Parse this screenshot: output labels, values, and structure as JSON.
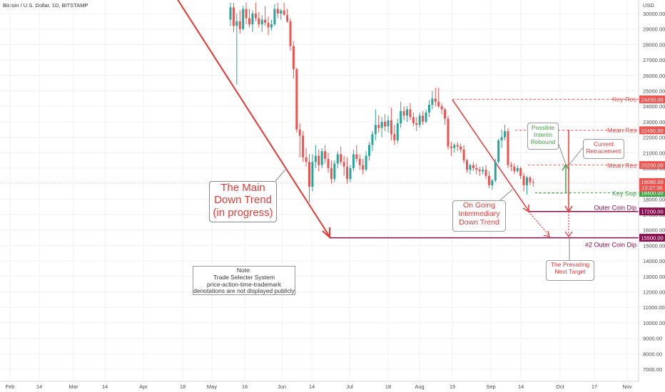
{
  "header": {
    "title": "Bitcoin / U.S. Dollar, 1D, BITSTAMP",
    "currency": "USD"
  },
  "colors": {
    "up": "#26a69a",
    "down": "#ef5350",
    "trend_line": "#e53935",
    "dip_line": "#880e4f",
    "green_arrow": "#43a047",
    "grid": "#f0f0f0"
  },
  "chart_data": {
    "type": "candlestick",
    "y_axis": {
      "min": 6500,
      "max": 30800,
      "ticks": [
        7000,
        8000,
        9000,
        10000,
        11000,
        12000,
        13000,
        14000,
        15000,
        16000,
        17000,
        18000,
        19000,
        20000,
        21000,
        22000,
        23000,
        24000,
        25000,
        26000,
        27000,
        28000,
        29000,
        30000
      ]
    },
    "x_axis": {
      "ticks": [
        "Feb",
        "14",
        "Mar",
        "14",
        "Apr",
        "18",
        "May",
        "16",
        "Jun",
        "14",
        "Jul",
        "18",
        "Aug",
        "15",
        "Sep",
        "14",
        "Oct",
        "17",
        "Nov"
      ]
    },
    "candles": [
      {
        "o": 29600,
        "h": 30700,
        "l": 29200,
        "c": 30400
      },
      {
        "o": 30400,
        "h": 30700,
        "l": 28800,
        "c": 29200
      },
      {
        "o": 29200,
        "h": 30000,
        "l": 25400,
        "c": 29500
      },
      {
        "o": 29500,
        "h": 30200,
        "l": 28700,
        "c": 29000
      },
      {
        "o": 29000,
        "h": 30500,
        "l": 28900,
        "c": 30300
      },
      {
        "o": 30300,
        "h": 30700,
        "l": 29300,
        "c": 29700
      },
      {
        "o": 29700,
        "h": 30300,
        "l": 29100,
        "c": 29300
      },
      {
        "o": 29300,
        "h": 30200,
        "l": 28800,
        "c": 30000
      },
      {
        "o": 30000,
        "h": 30700,
        "l": 29500,
        "c": 29700
      },
      {
        "o": 29700,
        "h": 30100,
        "l": 29100,
        "c": 29300
      },
      {
        "o": 29300,
        "h": 29900,
        "l": 28800,
        "c": 29600
      },
      {
        "o": 29600,
        "h": 30500,
        "l": 29200,
        "c": 29400
      },
      {
        "o": 29400,
        "h": 29800,
        "l": 28600,
        "c": 29100
      },
      {
        "o": 29100,
        "h": 29600,
        "l": 28900,
        "c": 29300
      },
      {
        "o": 29300,
        "h": 30600,
        "l": 29200,
        "c": 30300
      },
      {
        "o": 30300,
        "h": 30700,
        "l": 29700,
        "c": 30000
      },
      {
        "o": 30000,
        "h": 30300,
        "l": 29600,
        "c": 30200
      },
      {
        "o": 30200,
        "h": 30700,
        "l": 29900,
        "c": 29900
      },
      {
        "o": 29900,
        "h": 30300,
        "l": 29400,
        "c": 29500
      },
      {
        "o": 29500,
        "h": 29700,
        "l": 27600,
        "c": 27900
      },
      {
        "o": 27900,
        "h": 28200,
        "l": 25800,
        "c": 26400
      },
      {
        "o": 26400,
        "h": 26500,
        "l": 22300,
        "c": 22500
      },
      {
        "o": 22500,
        "h": 22900,
        "l": 20700,
        "c": 22100
      },
      {
        "o": 22100,
        "h": 22400,
        "l": 20400,
        "c": 20700
      },
      {
        "o": 20700,
        "h": 21300,
        "l": 20100,
        "c": 20400
      },
      {
        "o": 20400,
        "h": 20900,
        "l": 17800,
        "c": 18800
      },
      {
        "o": 18800,
        "h": 20900,
        "l": 18500,
        "c": 20400
      },
      {
        "o": 20400,
        "h": 21500,
        "l": 20000,
        "c": 20800
      },
      {
        "o": 20800,
        "h": 21200,
        "l": 19800,
        "c": 20200
      },
      {
        "o": 20200,
        "h": 21300,
        "l": 20000,
        "c": 21100
      },
      {
        "o": 21100,
        "h": 21500,
        "l": 20300,
        "c": 20600
      },
      {
        "o": 20600,
        "h": 21000,
        "l": 19700,
        "c": 20000
      },
      {
        "o": 20000,
        "h": 20500,
        "l": 19000,
        "c": 19300
      },
      {
        "o": 19300,
        "h": 20500,
        "l": 19100,
        "c": 20300
      },
      {
        "o": 20300,
        "h": 21100,
        "l": 20000,
        "c": 20900
      },
      {
        "o": 20900,
        "h": 21400,
        "l": 20200,
        "c": 20400
      },
      {
        "o": 20400,
        "h": 20800,
        "l": 19500,
        "c": 20100
      },
      {
        "o": 20100,
        "h": 20700,
        "l": 19000,
        "c": 19300
      },
      {
        "o": 19300,
        "h": 20200,
        "l": 19100,
        "c": 20000
      },
      {
        "o": 20000,
        "h": 21200,
        "l": 19800,
        "c": 20900
      },
      {
        "o": 20900,
        "h": 21500,
        "l": 20400,
        "c": 20600
      },
      {
        "o": 20600,
        "h": 20900,
        "l": 19900,
        "c": 20200
      },
      {
        "o": 20200,
        "h": 20600,
        "l": 19600,
        "c": 19900
      },
      {
        "o": 19900,
        "h": 21100,
        "l": 19800,
        "c": 20800
      },
      {
        "o": 20800,
        "h": 21700,
        "l": 20500,
        "c": 21500
      },
      {
        "o": 21500,
        "h": 22400,
        "l": 21100,
        "c": 22200
      },
      {
        "o": 22200,
        "h": 23800,
        "l": 21800,
        "c": 22800
      },
      {
        "o": 22800,
        "h": 23400,
        "l": 22300,
        "c": 22600
      },
      {
        "o": 22600,
        "h": 23300,
        "l": 22000,
        "c": 23000
      },
      {
        "o": 23000,
        "h": 23500,
        "l": 22400,
        "c": 22700
      },
      {
        "o": 22700,
        "h": 23400,
        "l": 22300,
        "c": 23100
      },
      {
        "o": 23100,
        "h": 23900,
        "l": 21800,
        "c": 22200
      },
      {
        "o": 22200,
        "h": 22800,
        "l": 21500,
        "c": 21800
      },
      {
        "o": 21800,
        "h": 23200,
        "l": 21600,
        "c": 22900
      },
      {
        "o": 22900,
        "h": 24300,
        "l": 22600,
        "c": 23700
      },
      {
        "o": 23700,
        "h": 24000,
        "l": 23100,
        "c": 23400
      },
      {
        "o": 23400,
        "h": 24000,
        "l": 23000,
        "c": 23800
      },
      {
        "o": 23800,
        "h": 24200,
        "l": 23100,
        "c": 23300
      },
      {
        "o": 23300,
        "h": 23600,
        "l": 22700,
        "c": 22900
      },
      {
        "o": 22900,
        "h": 23300,
        "l": 22400,
        "c": 22800
      },
      {
        "o": 22800,
        "h": 23600,
        "l": 22600,
        "c": 23400
      },
      {
        "o": 23400,
        "h": 23700,
        "l": 22800,
        "c": 23000
      },
      {
        "o": 23000,
        "h": 23800,
        "l": 22900,
        "c": 23600
      },
      {
        "o": 23600,
        "h": 24400,
        "l": 23300,
        "c": 24100
      },
      {
        "o": 24100,
        "h": 25000,
        "l": 23800,
        "c": 24500
      },
      {
        "o": 24500,
        "h": 25200,
        "l": 24000,
        "c": 24300
      },
      {
        "o": 24300,
        "h": 25200,
        "l": 23900,
        "c": 24000
      },
      {
        "o": 24000,
        "h": 24200,
        "l": 23500,
        "c": 23800
      },
      {
        "o": 23800,
        "h": 23900,
        "l": 22800,
        "c": 23200
      },
      {
        "o": 23200,
        "h": 23400,
        "l": 21200,
        "c": 21400
      },
      {
        "o": 21400,
        "h": 21700,
        "l": 20800,
        "c": 21300
      },
      {
        "o": 21300,
        "h": 21600,
        "l": 21000,
        "c": 21500
      },
      {
        "o": 21500,
        "h": 21700,
        "l": 21100,
        "c": 21400
      },
      {
        "o": 21400,
        "h": 21600,
        "l": 21000,
        "c": 21200
      },
      {
        "o": 21200,
        "h": 21500,
        "l": 20300,
        "c": 20500
      },
      {
        "o": 20500,
        "h": 20600,
        "l": 19700,
        "c": 19900
      },
      {
        "o": 19900,
        "h": 20300,
        "l": 19600,
        "c": 20200
      },
      {
        "o": 20200,
        "h": 20400,
        "l": 19800,
        "c": 20000
      },
      {
        "o": 20000,
        "h": 20300,
        "l": 19600,
        "c": 19900
      },
      {
        "o": 19900,
        "h": 20100,
        "l": 19500,
        "c": 19800
      },
      {
        "o": 19800,
        "h": 20100,
        "l": 19600,
        "c": 19900
      },
      {
        "o": 19900,
        "h": 20200,
        "l": 19300,
        "c": 19500
      },
      {
        "o": 19500,
        "h": 19800,
        "l": 18700,
        "c": 18900
      },
      {
        "o": 18900,
        "h": 19300,
        "l": 18600,
        "c": 19200
      },
      {
        "o": 19200,
        "h": 20600,
        "l": 19100,
        "c": 20400
      },
      {
        "o": 20400,
        "h": 21900,
        "l": 20300,
        "c": 21800
      },
      {
        "o": 21800,
        "h": 22500,
        "l": 21300,
        "c": 22000
      },
      {
        "o": 22000,
        "h": 22800,
        "l": 21800,
        "c": 22400
      },
      {
        "o": 22400,
        "h": 22600,
        "l": 20000,
        "c": 20200
      },
      {
        "o": 20200,
        "h": 20400,
        "l": 19800,
        "c": 20100
      },
      {
        "o": 20100,
        "h": 20300,
        "l": 19600,
        "c": 19800
      },
      {
        "o": 19800,
        "h": 20200,
        "l": 19700,
        "c": 20000
      },
      {
        "o": 20000,
        "h": 20100,
        "l": 19300,
        "c": 19500
      },
      {
        "o": 19500,
        "h": 19700,
        "l": 18500,
        "c": 18900
      },
      {
        "o": 18900,
        "h": 19500,
        "l": 18300,
        "c": 19400
      },
      {
        "o": 19400,
        "h": 19500,
        "l": 18900,
        "c": 19100
      },
      {
        "o": 19100,
        "h": 19300,
        "l": 18800,
        "c": 19080
      }
    ],
    "levels": [
      {
        "name": "Key Res",
        "price": 24450,
        "label": "Key Res",
        "tag": "24450.00",
        "style": "dashed",
        "color": "#ef5350"
      },
      {
        "name": "Mean Res",
        "price": 22450,
        "label": "Mean Res",
        "tag": "22450.00",
        "style": "dashed",
        "color": "#ef5350"
      },
      {
        "name": "Mean Res 2",
        "price": 20200,
        "label": "Mean Res",
        "tag": "20200.00",
        "style": "dashed",
        "color": "#ef5350"
      },
      {
        "name": "Key Sup",
        "price": 18400,
        "label": "Key Sup",
        "tag": "18400.00",
        "style": "dashed",
        "color": "#43a047"
      },
      {
        "name": "Outer Coin Dip",
        "price": 17200,
        "label": "Outer Coin Dip",
        "tag": "17200.00",
        "style": "solid",
        "color": "#880e4f"
      },
      {
        "name": "#2 Outer Coin Dip",
        "price": 15500,
        "label": "#2 Outer Coin Dip",
        "tag": "15500.00",
        "style": "solid",
        "color": "#880e4f"
      }
    ],
    "current_price": {
      "price": 19080,
      "tag": "19080.00",
      "countdown": "12:27:36"
    }
  },
  "annotations": {
    "main_trend": [
      "The Main",
      "Down Trend",
      "(in progress)"
    ],
    "intermediary": [
      "On Going",
      "Intermediary",
      "Down Trend"
    ],
    "rebound": [
      "Possible",
      "Interim",
      "Rebound"
    ],
    "retracement": [
      "Current",
      "Retracement"
    ],
    "target": [
      "The Prevailing",
      "Next Target"
    ],
    "note": [
      "Note:",
      "Trade Selecter System",
      "price-action-time-trademark",
      "denotations are not displayed publicly"
    ]
  }
}
